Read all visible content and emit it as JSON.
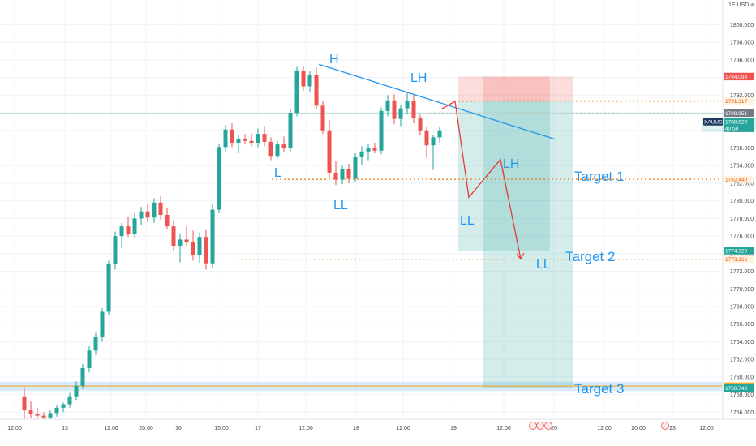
{
  "chart_data": {
    "type": "candlestick",
    "symbol": "XAUUSD",
    "currency": "USD",
    "ylim": [
      1755.2,
      1802.8
    ],
    "y_ticks": [
      "1800.000",
      "1798.000",
      "1796.000",
      "1794.000",
      "1792.000",
      "1790.000",
      "1788.000",
      "1786.000",
      "1784.000",
      "1782.000",
      "1780.000",
      "1778.000",
      "1776.000",
      "1774.000",
      "1772.000",
      "1770.000",
      "1768.000",
      "1766.000",
      "1764.000",
      "1762.000",
      "1760.000",
      "1758.000",
      "1756.000"
    ],
    "x_ticks": [
      "12:00",
      "13",
      "12:00",
      "20:00",
      "16",
      "15:00",
      "17",
      "12:00",
      "18",
      "12:00",
      "19",
      "12:00",
      "20",
      "12:00",
      "20:00",
      "23",
      "12:00"
    ],
    "candles": [
      [
        1757.8,
        1758.8,
        1755.0,
        1756.2
      ],
      [
        1756.2,
        1757.2,
        1755.3,
        1755.8
      ],
      [
        1755.8,
        1756.5,
        1755.2,
        1755.6
      ],
      [
        1755.6,
        1756.0,
        1755.2,
        1755.4
      ],
      [
        1755.4,
        1756.2,
        1755.2,
        1755.9
      ],
      [
        1755.9,
        1756.8,
        1755.5,
        1756.5
      ],
      [
        1756.5,
        1757.1,
        1756.0,
        1756.9
      ],
      [
        1756.9,
        1758.2,
        1756.5,
        1757.8
      ],
      [
        1757.8,
        1759.5,
        1757.4,
        1759.0
      ],
      [
        1759.0,
        1761.5,
        1758.6,
        1761.0
      ],
      [
        1761.0,
        1763.5,
        1760.5,
        1763.0
      ],
      [
        1763.0,
        1765.0,
        1762.5,
        1764.5
      ],
      [
        1764.5,
        1767.8,
        1764.0,
        1767.4
      ],
      [
        1767.4,
        1773.2,
        1767.0,
        1772.8
      ],
      [
        1772.8,
        1776.5,
        1772.2,
        1776.0
      ],
      [
        1776.0,
        1777.5,
        1774.6,
        1777.1
      ],
      [
        1777.1,
        1778.2,
        1775.9,
        1776.2
      ],
      [
        1776.2,
        1778.6,
        1775.8,
        1778.0
      ],
      [
        1778.0,
        1779.3,
        1777.2,
        1778.8
      ],
      [
        1778.8,
        1779.6,
        1777.6,
        1778.1
      ],
      [
        1778.1,
        1780.3,
        1777.5,
        1779.8
      ],
      [
        1779.8,
        1780.5,
        1777.9,
        1778.4
      ],
      [
        1778.4,
        1779.2,
        1776.8,
        1777.1
      ],
      [
        1777.1,
        1777.8,
        1774.3,
        1774.9
      ],
      [
        1774.9,
        1776.3,
        1773.0,
        1775.6
      ],
      [
        1775.6,
        1777.1,
        1774.9,
        1775.3
      ],
      [
        1775.3,
        1776.6,
        1773.2,
        1773.8
      ],
      [
        1773.8,
        1776.4,
        1773.0,
        1775.9
      ],
      [
        1775.9,
        1776.7,
        1772.2,
        1772.9
      ],
      [
        1772.9,
        1779.6,
        1772.4,
        1779.0
      ],
      [
        1779.0,
        1786.5,
        1778.6,
        1786.1
      ],
      [
        1786.1,
        1788.6,
        1785.5,
        1788.1
      ],
      [
        1788.1,
        1788.8,
        1786.1,
        1786.6
      ],
      [
        1786.6,
        1787.4,
        1785.4,
        1787.0
      ],
      [
        1787.0,
        1787.6,
        1786.4,
        1786.8
      ],
      [
        1786.8,
        1787.6,
        1786.2,
        1786.6
      ],
      [
        1786.6,
        1788.2,
        1786.1,
        1787.6
      ],
      [
        1787.6,
        1788.5,
        1786.2,
        1786.7
      ],
      [
        1786.7,
        1787.2,
        1784.6,
        1785.1
      ],
      [
        1785.1,
        1786.8,
        1784.8,
        1786.4
      ],
      [
        1786.4,
        1787.3,
        1785.6,
        1786.0
      ],
      [
        1786.0,
        1790.4,
        1785.6,
        1790.0
      ],
      [
        1790.0,
        1795.2,
        1789.6,
        1794.8
      ],
      [
        1794.8,
        1795.3,
        1792.5,
        1793.0
      ],
      [
        1793.0,
        1794.7,
        1792.4,
        1794.3
      ],
      [
        1794.3,
        1795.1,
        1790.4,
        1790.8
      ],
      [
        1790.8,
        1791.3,
        1787.6,
        1788.0
      ],
      [
        1788.0,
        1789.2,
        1782.7,
        1783.2
      ],
      [
        1783.2,
        1784.5,
        1781.8,
        1782.4
      ],
      [
        1782.4,
        1784.0,
        1781.9,
        1783.6
      ],
      [
        1783.6,
        1784.2,
        1782.0,
        1782.5
      ],
      [
        1782.5,
        1785.4,
        1782.1,
        1785.0
      ],
      [
        1785.0,
        1786.2,
        1784.1,
        1785.6
      ],
      [
        1785.6,
        1786.4,
        1784.6,
        1786.0
      ],
      [
        1786.0,
        1786.6,
        1785.4,
        1785.7
      ],
      [
        1785.7,
        1790.6,
        1785.3,
        1790.2
      ],
      [
        1790.2,
        1792.0,
        1789.6,
        1791.4
      ],
      [
        1791.4,
        1792.1,
        1788.7,
        1789.3
      ],
      [
        1789.3,
        1790.9,
        1788.5,
        1790.5
      ],
      [
        1790.5,
        1792.4,
        1789.9,
        1791.3
      ],
      [
        1791.3,
        1792.1,
        1788.8,
        1789.4
      ],
      [
        1789.4,
        1789.8,
        1787.4,
        1788.0
      ],
      [
        1788.0,
        1788.4,
        1784.9,
        1786.3
      ],
      [
        1786.3,
        1787.5,
        1783.5,
        1787.2
      ],
      [
        1787.2,
        1788.4,
        1786.6,
        1788.0
      ]
    ],
    "annotations": [
      {
        "text": "H",
        "price": 1795.9,
        "col": 42
      },
      {
        "text": "LH",
        "price": 1792.8,
        "col": 58
      },
      {
        "text": "L",
        "price": 1783.9,
        "col": 38
      },
      {
        "text": "LL",
        "price": 1779.8,
        "col": 49
      },
      {
        "text": "LH",
        "price": 1784.7,
        "col": 74
      },
      {
        "text": "LL",
        "price": 1777.5,
        "col": 68
      },
      {
        "text": "LL",
        "price": 1773.9,
        "col": 78
      },
      {
        "text": "Target 1",
        "price": 1784.0,
        "col": 86
      },
      {
        "text": "Target 2",
        "price": 1774.2,
        "col": 85
      },
      {
        "text": "Target 3",
        "price": 1759.2,
        "col": 86
      }
    ],
    "levels": [
      {
        "price": 1791.337,
        "label": "1791.337",
        "color": "#f57c00",
        "style": "dotted"
      },
      {
        "price": 1791.317,
        "label": "1791.317",
        "color": "#f57c00",
        "style": "dotted"
      },
      {
        "price": 1789.956,
        "label": "1789.956",
        "color": "#f57c00",
        "style": "dotted"
      },
      {
        "price": 1782.44,
        "label": "1782.440",
        "color": "#f57c00",
        "style": "dotted"
      },
      {
        "price": 1773.366,
        "label": "1773.366",
        "color": "#f57c00",
        "style": "dotted"
      },
      {
        "price": 1758.967,
        "label": "1758.967",
        "color": "#f5a623",
        "style": "solid"
      }
    ],
    "price_labels": [
      {
        "price": 1794.122,
        "label": "1794.122",
        "bg": "#ef5350",
        "fg": "#ffffff"
      },
      {
        "price": 1794.093,
        "label": "1794.093",
        "bg": "#ef5350",
        "fg": "#ffffff"
      },
      {
        "price": 1789.951,
        "label": "1789.951",
        "bg": "#787b86",
        "fg": "#ffffff"
      },
      {
        "price": 1774.329,
        "label": "1774.329",
        "bg": "#26a69a",
        "fg": "#ffffff"
      },
      {
        "price": 1758.748,
        "label": "1758.748",
        "bg": "#26a69a",
        "fg": "#ffffff"
      }
    ],
    "current_price": {
      "price": 1788.829,
      "label": "1788.829",
      "countdown": "40:50",
      "symbol": "XAUUSD"
    },
    "colors": {
      "up": "#26a69a",
      "down": "#ef5350",
      "annotation": "#2196f3",
      "projection": "#e53935",
      "trendline": "#2196f3",
      "level": "#f57c00",
      "profit": "#26a69a",
      "loss": "#ef5350"
    }
  },
  "axis": {
    "currency_label": "USD",
    "events_icon": "calendar-events"
  }
}
